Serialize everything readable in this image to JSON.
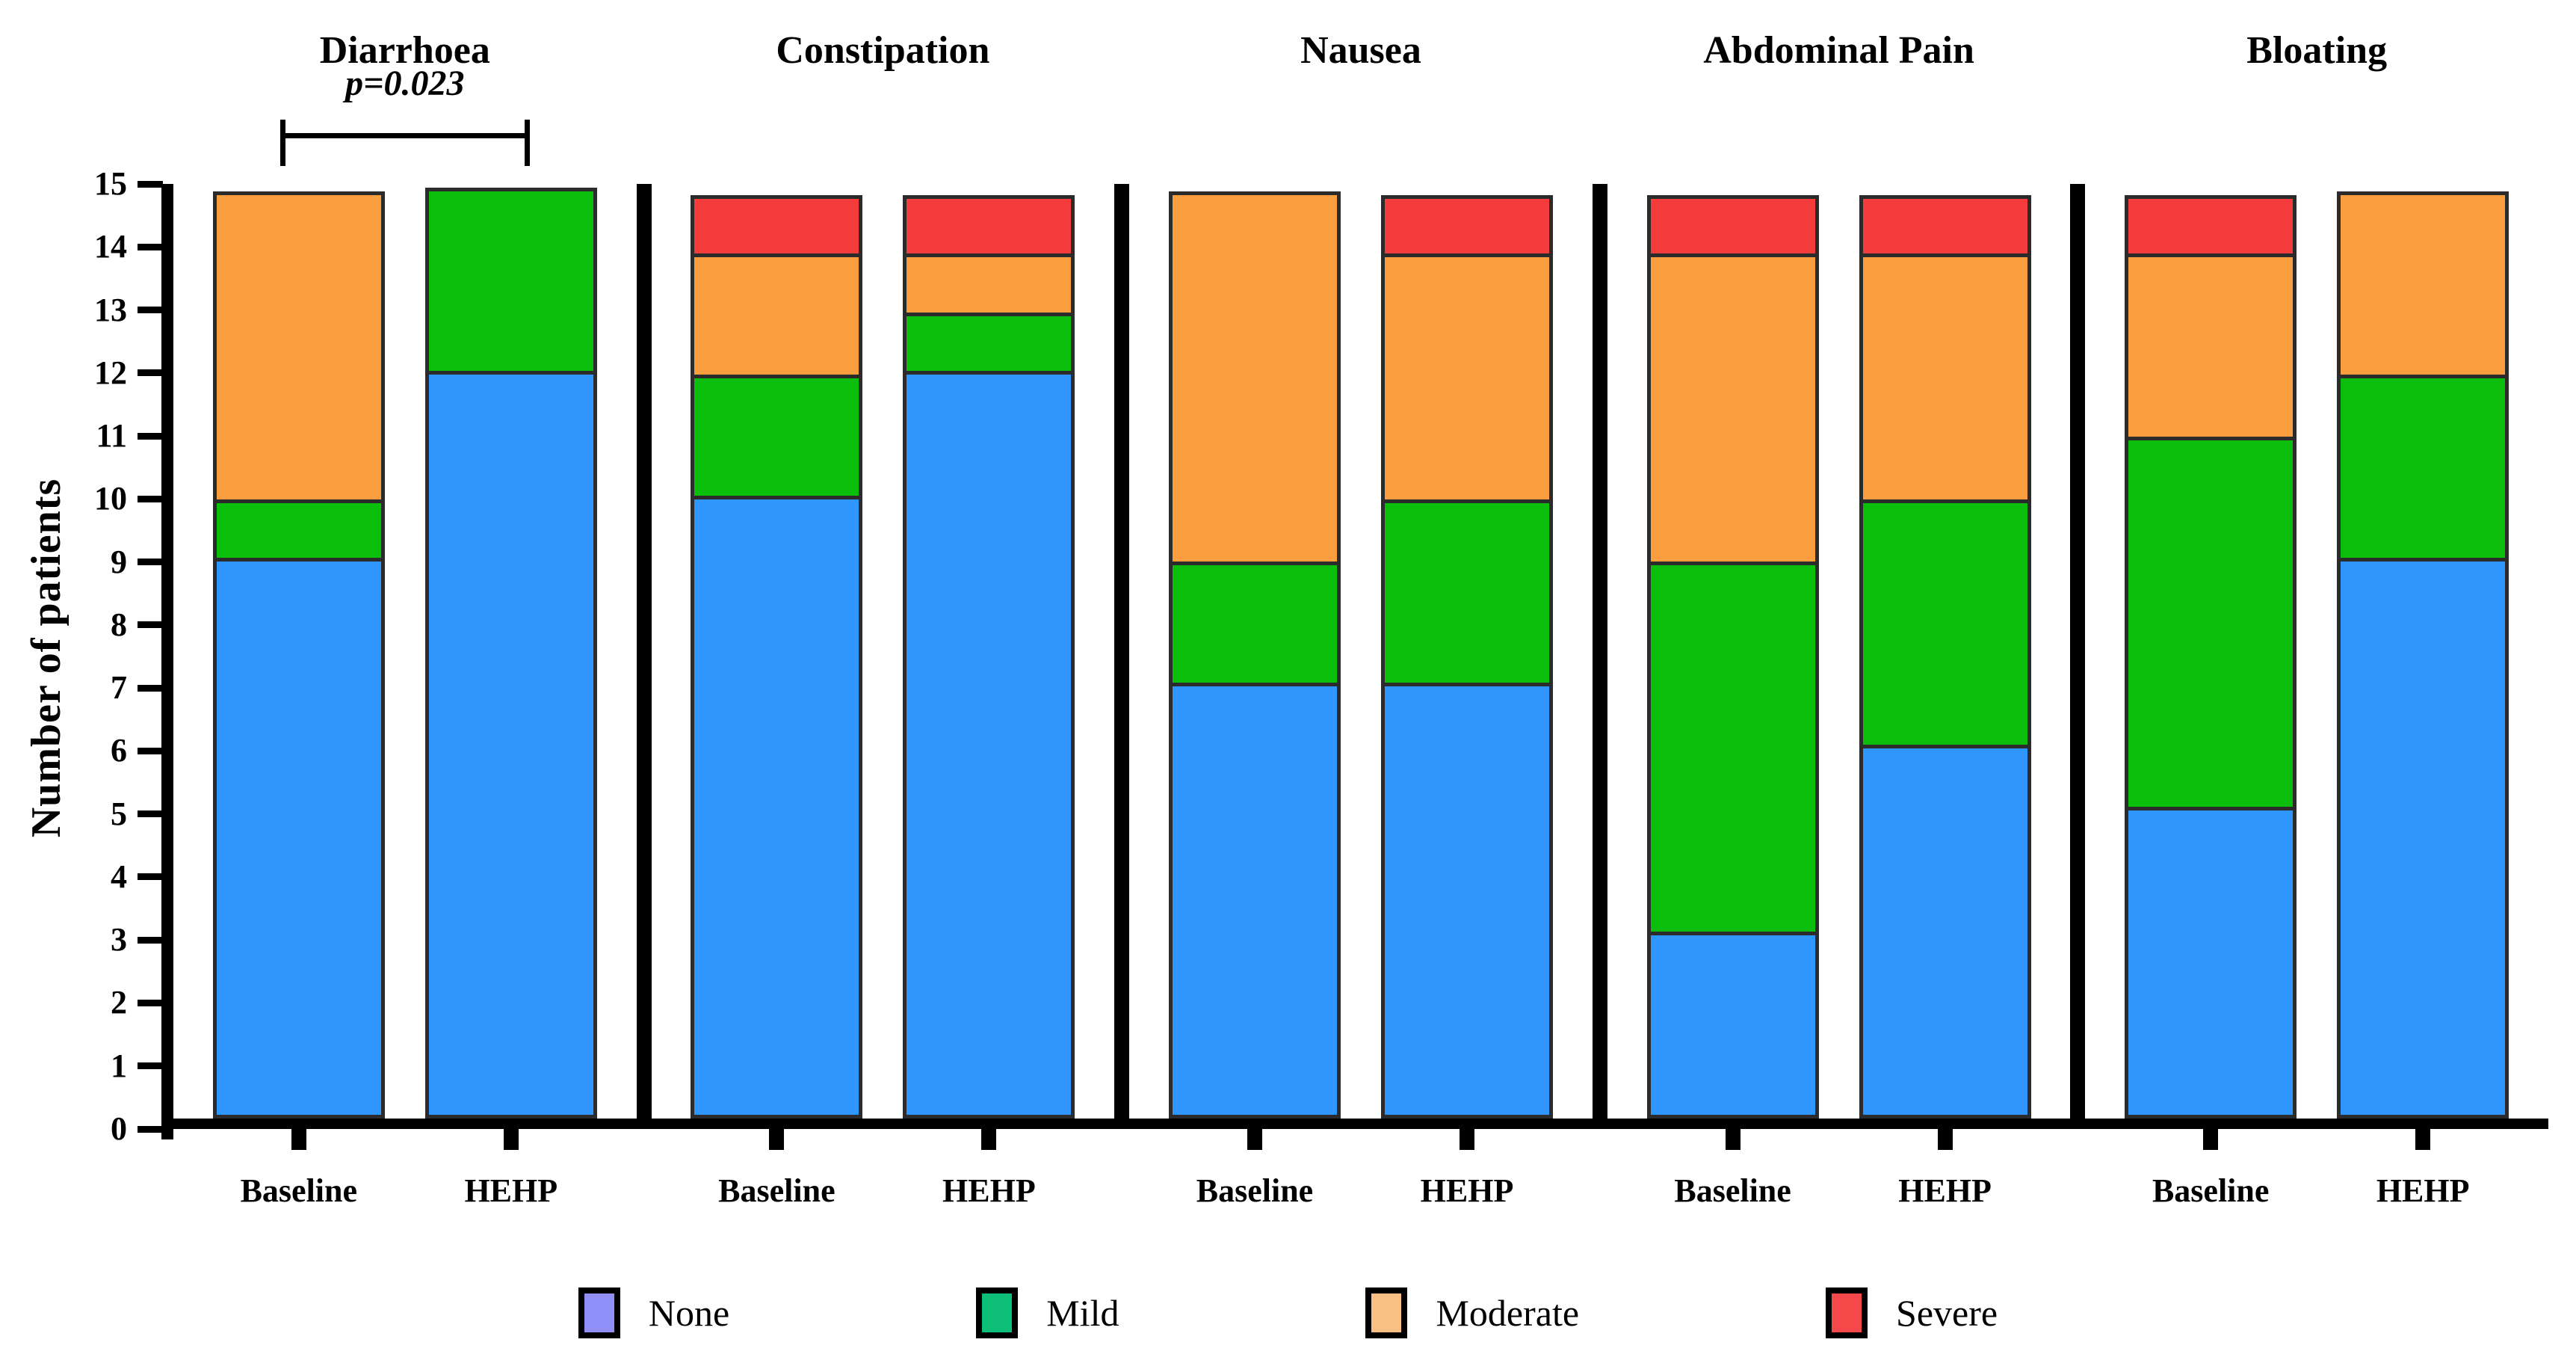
{
  "figure": {
    "y_axis_label": "Number of patients"
  },
  "legend": {
    "items": [
      {
        "label": "None",
        "swatch_color": "#8F8FF7"
      },
      {
        "label": "Mild",
        "swatch_color": "#0DBE78"
      },
      {
        "label": "Moderate",
        "swatch_color": "#F9C083"
      },
      {
        "label": "Severe",
        "swatch_color": "#F54949"
      }
    ]
  },
  "chart_data": {
    "type": "bar",
    "stacked": true,
    "title": "",
    "ylabel": "Number of patients",
    "ylim": [
      0,
      15
    ],
    "ytick_step": 1,
    "grid": false,
    "legend_position": "bottom",
    "series_order": [
      "None",
      "Mild",
      "Moderate",
      "Severe"
    ],
    "bar_colors": {
      "None": "#2E96FC",
      "Mild": "#0BBE0B",
      "Moderate": "#FB9E40",
      "Severe": "#F53C3C"
    },
    "x_labels": [
      "Baseline",
      "HEHP"
    ],
    "groups": [
      {
        "title": "Diarrhoea",
        "annotation": "p=0.023",
        "bars": [
          {
            "label": "Baseline",
            "values": {
              "None": 9,
              "Mild": 1,
              "Moderate": 5,
              "Severe": 0
            }
          },
          {
            "label": "HEHP",
            "values": {
              "None": 12,
              "Mild": 3,
              "Moderate": 0,
              "Severe": 0
            }
          }
        ]
      },
      {
        "title": "Constipation",
        "annotation": null,
        "bars": [
          {
            "label": "Baseline",
            "values": {
              "None": 10,
              "Mild": 2,
              "Moderate": 2,
              "Severe": 1
            }
          },
          {
            "label": "HEHP",
            "values": {
              "None": 12,
              "Mild": 1,
              "Moderate": 1,
              "Severe": 1
            }
          }
        ]
      },
      {
        "title": "Nausea",
        "annotation": null,
        "bars": [
          {
            "label": "Baseline",
            "values": {
              "None": 7,
              "Mild": 2,
              "Moderate": 6,
              "Severe": 0
            }
          },
          {
            "label": "HEHP",
            "values": {
              "None": 7,
              "Mild": 3,
              "Moderate": 4,
              "Severe": 1
            }
          }
        ]
      },
      {
        "title": "Abdominal Pain",
        "annotation": null,
        "bars": [
          {
            "label": "Baseline",
            "values": {
              "None": 3,
              "Mild": 6,
              "Moderate": 5,
              "Severe": 1
            }
          },
          {
            "label": "HEHP",
            "values": {
              "None": 6,
              "Mild": 4,
              "Moderate": 4,
              "Severe": 1
            }
          }
        ]
      },
      {
        "title": "Bloating",
        "annotation": null,
        "bars": [
          {
            "label": "Baseline",
            "values": {
              "None": 5,
              "Mild": 6,
              "Moderate": 3,
              "Severe": 1
            }
          },
          {
            "label": "HEHP",
            "values": {
              "None": 9,
              "Mild": 3,
              "Moderate": 3,
              "Severe": 0
            }
          }
        ]
      }
    ]
  }
}
